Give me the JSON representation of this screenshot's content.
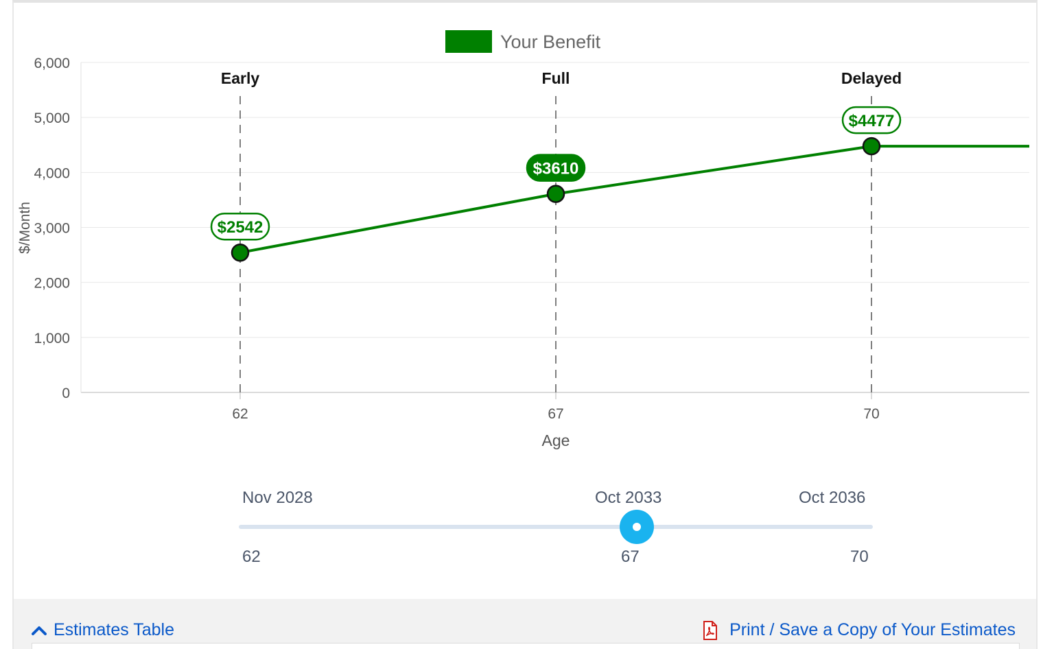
{
  "legend": {
    "label": "Your Benefit",
    "color": "#008000"
  },
  "chart_data": {
    "type": "line",
    "title": "",
    "xlabel": "Age",
    "ylabel": "$/Month",
    "ylim": [
      0,
      6000
    ],
    "yticks": [
      0,
      1000,
      2000,
      3000,
      4000,
      5000,
      6000
    ],
    "ytick_labels": [
      "0",
      "1,000",
      "2,000",
      "3,000",
      "4,000",
      "5,000",
      "6,000"
    ],
    "xticks": [
      62,
      67,
      70
    ],
    "series": [
      {
        "name": "Your Benefit",
        "color": "#008000",
        "x": [
          62,
          67,
          70
        ],
        "values": [
          2542,
          3610,
          4477
        ]
      }
    ],
    "point_labels": [
      "$2542",
      "$3610",
      "$4477"
    ],
    "highlighted_point": 1,
    "markers": [
      {
        "age": 62,
        "label": "Early"
      },
      {
        "age": 67,
        "label": "Full"
      },
      {
        "age": 70,
        "label": "Delayed"
      }
    ],
    "grid": true,
    "legend_position": "top-center"
  },
  "slider": {
    "dates": [
      "Nov 2028",
      "Oct 2033",
      "Oct 2036"
    ],
    "ages": [
      "62",
      "67",
      "70"
    ],
    "selected_age": 67,
    "min_age": 62,
    "max_age": 70,
    "handle_color": "#1ab3ef"
  },
  "footer": {
    "estimates_table_label": "Estimates Table",
    "print_label": "Print / Save a Copy of Your Estimates",
    "chevron_icon": "chevron-up-icon",
    "pdf_icon": "pdf-file-icon"
  }
}
